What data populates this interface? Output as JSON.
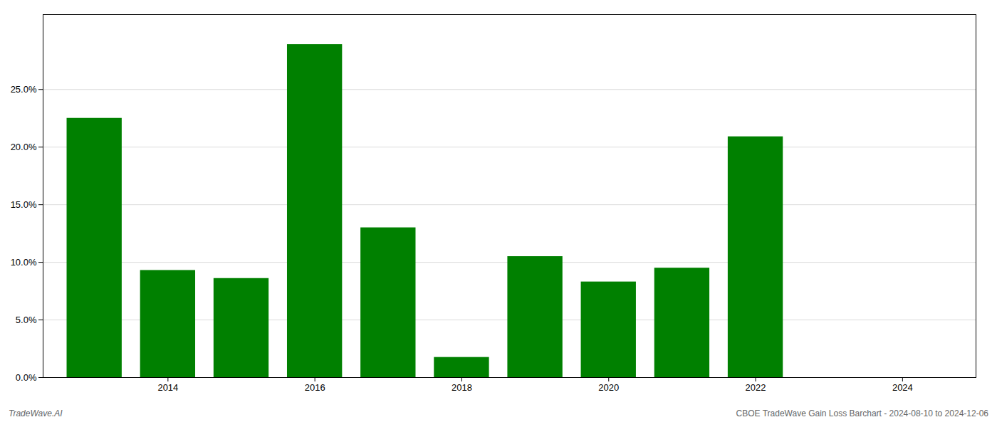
{
  "chart_data": {
    "type": "bar",
    "x": [
      2013,
      2014,
      2015,
      2016,
      2017,
      2018,
      2019,
      2020,
      2021,
      2022,
      2023
    ],
    "values": [
      0.225,
      0.093,
      0.086,
      0.289,
      0.13,
      0.0175,
      0.105,
      0.083,
      0.095,
      0.209,
      0.0
    ],
    "color": "#008000",
    "xlim": [
      2012.3,
      2025.0
    ],
    "xticks": [
      2014,
      2016,
      2018,
      2020,
      2022,
      2024
    ],
    "ylim": [
      0,
      0.315
    ],
    "yticks": [
      {
        "value": 0.0,
        "label": "0.0%"
      },
      {
        "value": 0.05,
        "label": "5.0%"
      },
      {
        "value": 0.1,
        "label": "10.0%"
      },
      {
        "value": 0.15,
        "label": "15.0%"
      },
      {
        "value": 0.2,
        "label": "20.0%"
      },
      {
        "value": 0.25,
        "label": "25.0%"
      }
    ],
    "grid": true,
    "footer_left": "TradeWave.AI",
    "footer_right": "CBOE TradeWave Gain Loss Barchart - 2024-08-10 to 2024-12-06"
  }
}
